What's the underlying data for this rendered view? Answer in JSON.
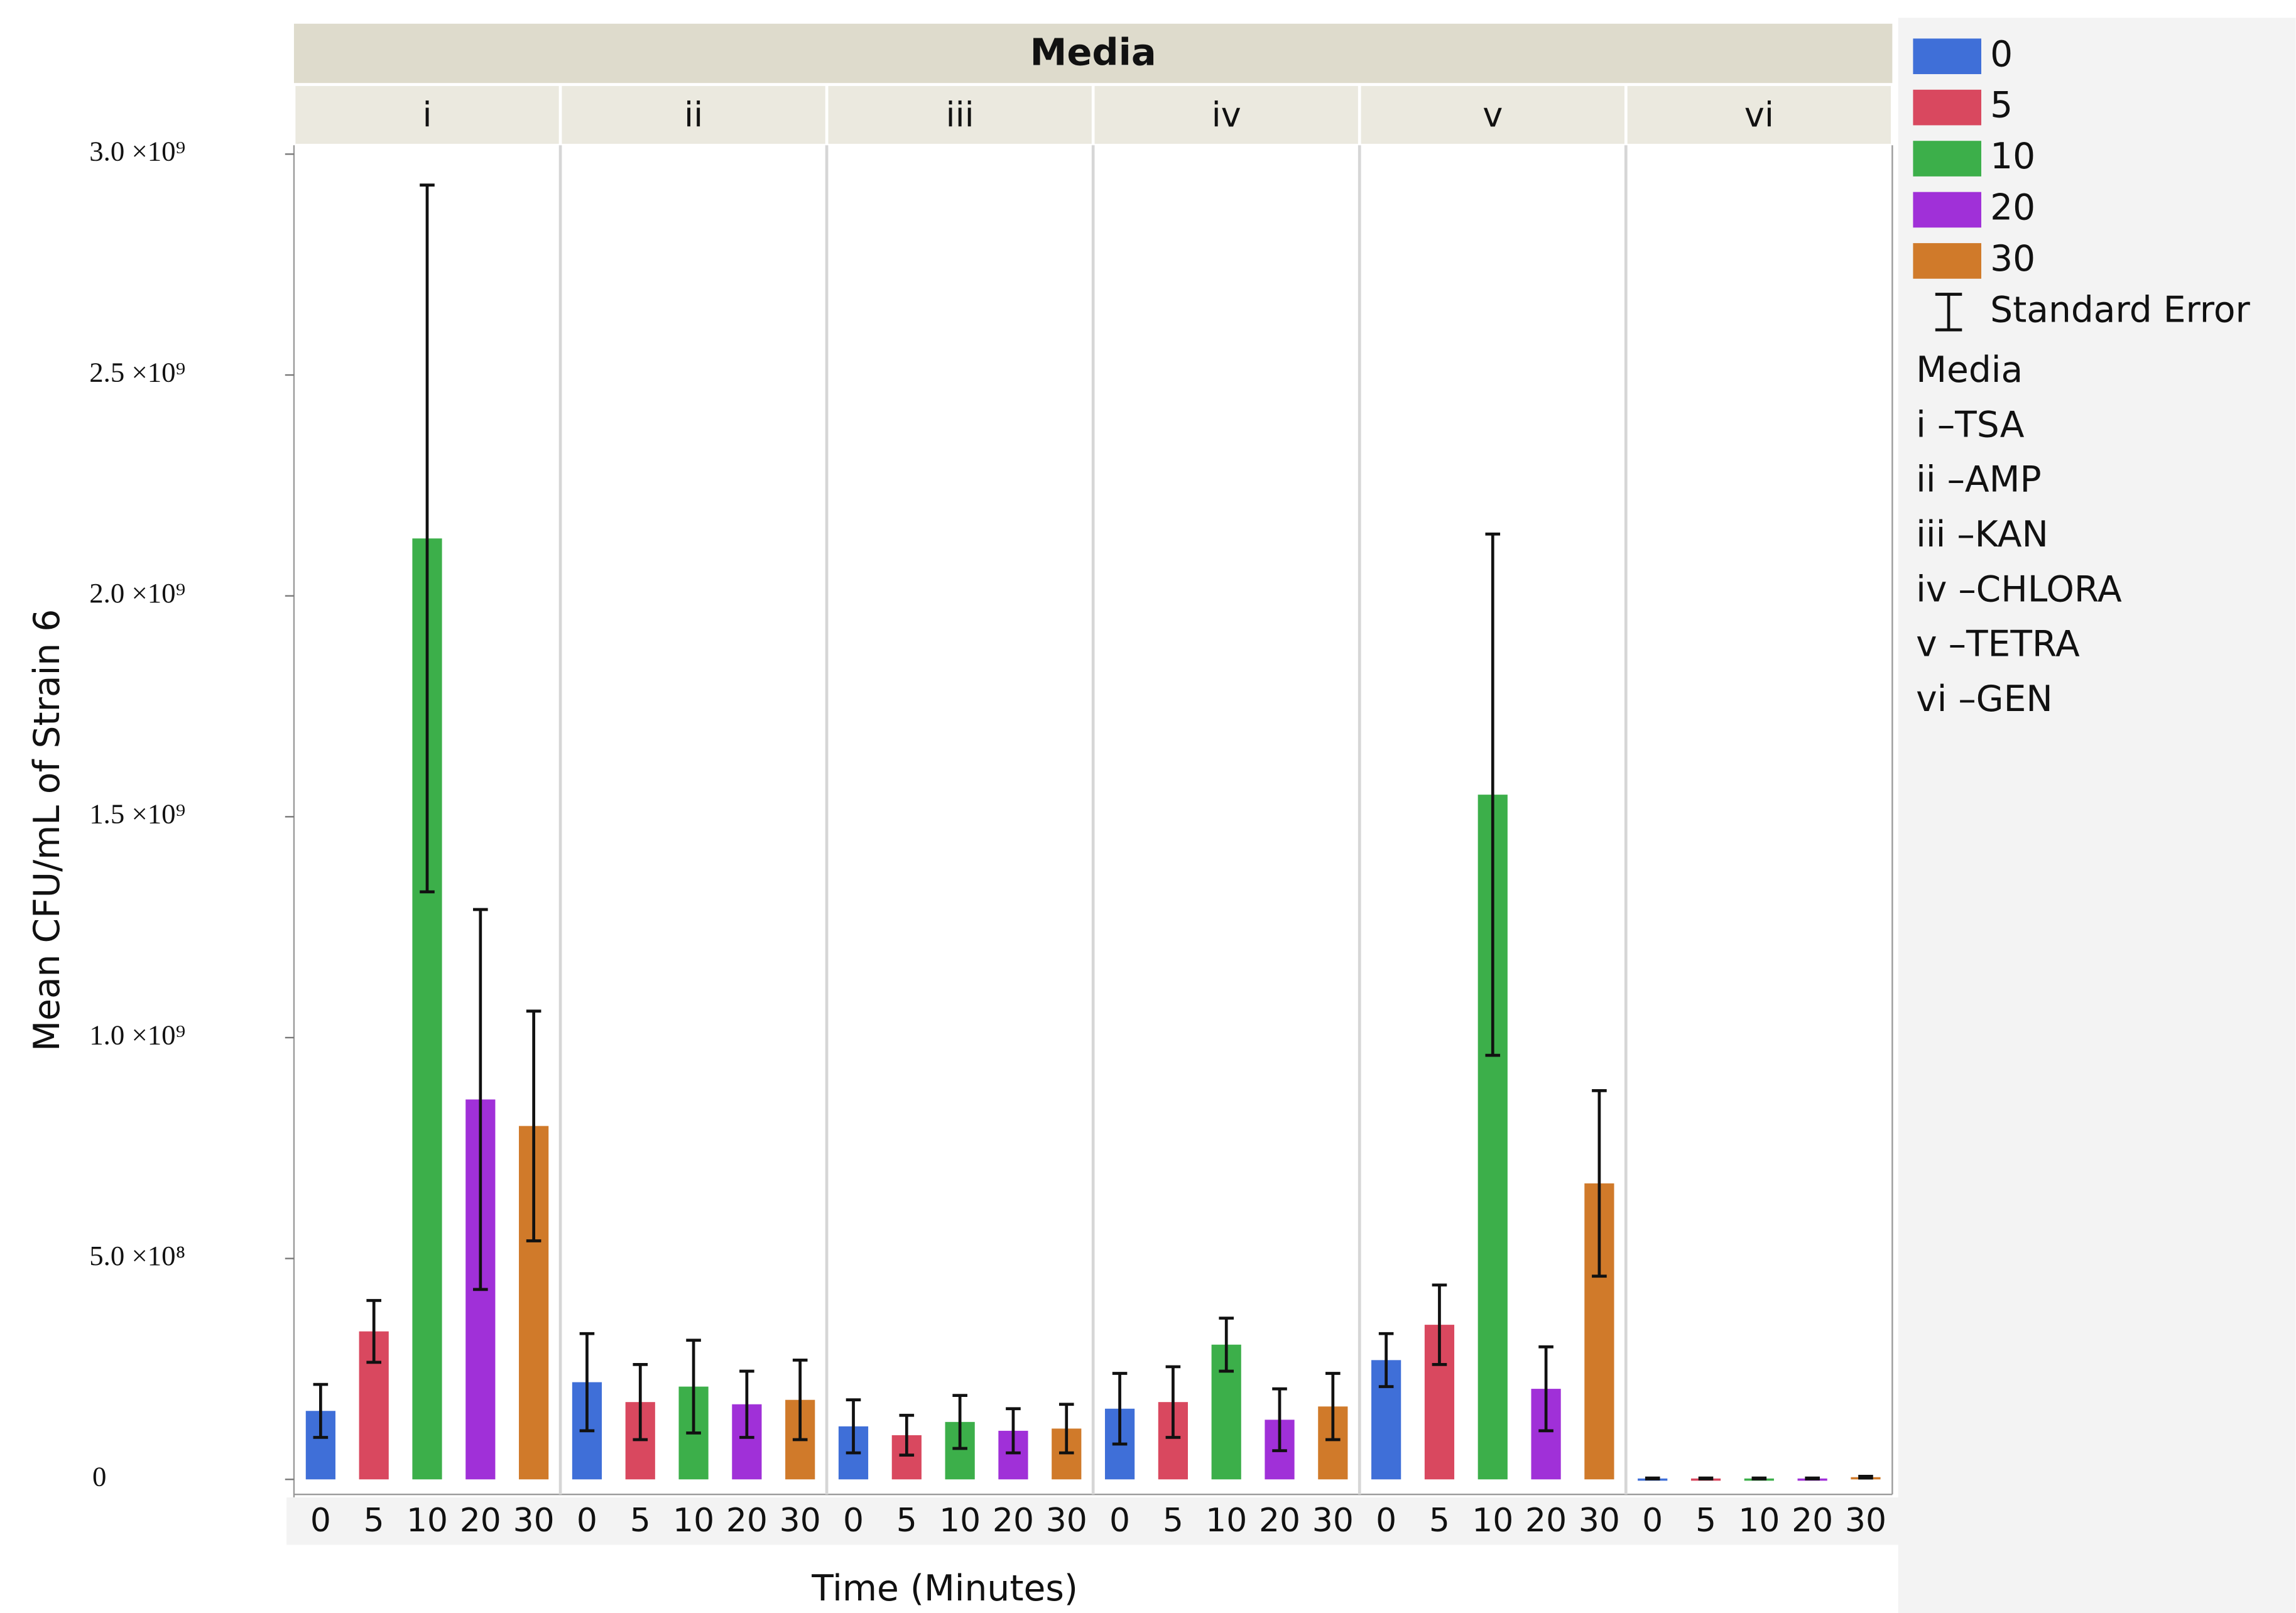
{
  "chart_data": {
    "type": "bar",
    "facet_title": "Media",
    "y_label": "Mean CFU/mL of Strain 6",
    "x_label": "Time (Minutes)",
    "categories": [
      "i",
      "ii",
      "iii",
      "iv",
      "v",
      "vi"
    ],
    "series": [
      {
        "name": "0",
        "color": "#3f6fd8",
        "values": [
          155000000,
          220000000,
          120000000,
          160000000,
          270000000,
          2000000
        ],
        "errors": [
          60000000,
          110000000,
          60000000,
          80000000,
          60000000,
          1000000
        ]
      },
      {
        "name": "5",
        "color": "#d9485f",
        "values": [
          335000000,
          175000000,
          100000000,
          175000000,
          350000000,
          2000000
        ],
        "errors": [
          70000000,
          85000000,
          45000000,
          80000000,
          90000000,
          1000000
        ]
      },
      {
        "name": "10",
        "color": "#3caf4a",
        "values": [
          2130000000,
          210000000,
          130000000,
          305000000,
          1550000000,
          2000000
        ],
        "errors": [
          800000000,
          105000000,
          60000000,
          60000000,
          590000000,
          1000000
        ]
      },
      {
        "name": "20",
        "color": "#a030d8",
        "values": [
          860000000,
          170000000,
          110000000,
          135000000,
          205000000,
          2000000
        ],
        "errors": [
          430000000,
          75000000,
          50000000,
          70000000,
          95000000,
          1000000
        ]
      },
      {
        "name": "30",
        "color": "#d07a2a",
        "values": [
          800000000,
          180000000,
          115000000,
          165000000,
          670000000,
          5000000
        ],
        "errors": [
          260000000,
          90000000,
          55000000,
          75000000,
          210000000,
          2000000
        ]
      }
    ],
    "ylim": [
      -34000000,
      3020000000
    ],
    "yticks": [
      0,
      {
        "value": 500000000,
        "label": "5.0 ×10⁸"
      },
      {
        "value": 1000000000,
        "label": "1.0 ×10⁹"
      },
      {
        "value": 1500000000,
        "label": "1.5 ×10⁹"
      },
      {
        "value": 2000000000,
        "label": "2.0 ×10⁹"
      },
      {
        "value": 2500000000,
        "label": "2.5 ×10⁹"
      },
      {
        "value": 3000000000,
        "label": "3.0 ×10⁹"
      }
    ],
    "error_legend": "Standard Error",
    "legend_notes": [
      "Media",
      "i –TSA",
      "ii –AMP",
      "iii –KAN",
      "iv –CHLORA",
      "v –TETRA",
      "vi –GEN"
    ]
  }
}
